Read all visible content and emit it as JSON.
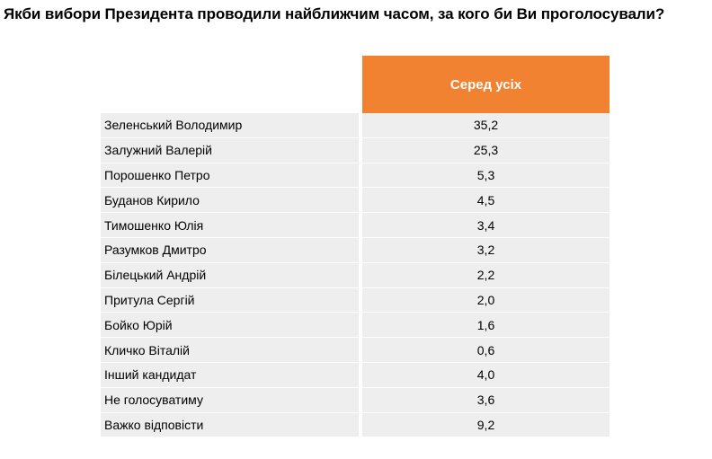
{
  "title": "Якби вибори Президента проводили найближчим часом, за кого би Ви проголосували?",
  "table": {
    "column_header": "Серед усіх",
    "rows": [
      {
        "name": "Зеленський Володимир",
        "value": "35,2"
      },
      {
        "name": "Залужний Валерій",
        "value": "25,3"
      },
      {
        "name": "Порошенко Петро",
        "value": "5,3"
      },
      {
        "name": "Буданов Кирило",
        "value": "4,5"
      },
      {
        "name": "Тимошенко Юлія",
        "value": "3,4"
      },
      {
        "name": "Разумков Дмитро",
        "value": "3,2"
      },
      {
        "name": "Білецький Андрій",
        "value": "2,2"
      },
      {
        "name": "Притула Сергій",
        "value": "2,0"
      },
      {
        "name": "Бойко Юрій",
        "value": "1,6"
      },
      {
        "name": "Кличко Віталій",
        "value": "0,6"
      },
      {
        "name": "Інший кандидат",
        "value": "4,0"
      },
      {
        "name": "Не голосуватиму",
        "value": "3,6"
      },
      {
        "name": "Важко відповісти",
        "value": "9,2"
      }
    ]
  },
  "colors": {
    "header_bg": "#f08232",
    "row_bg": "#eeeeee"
  }
}
